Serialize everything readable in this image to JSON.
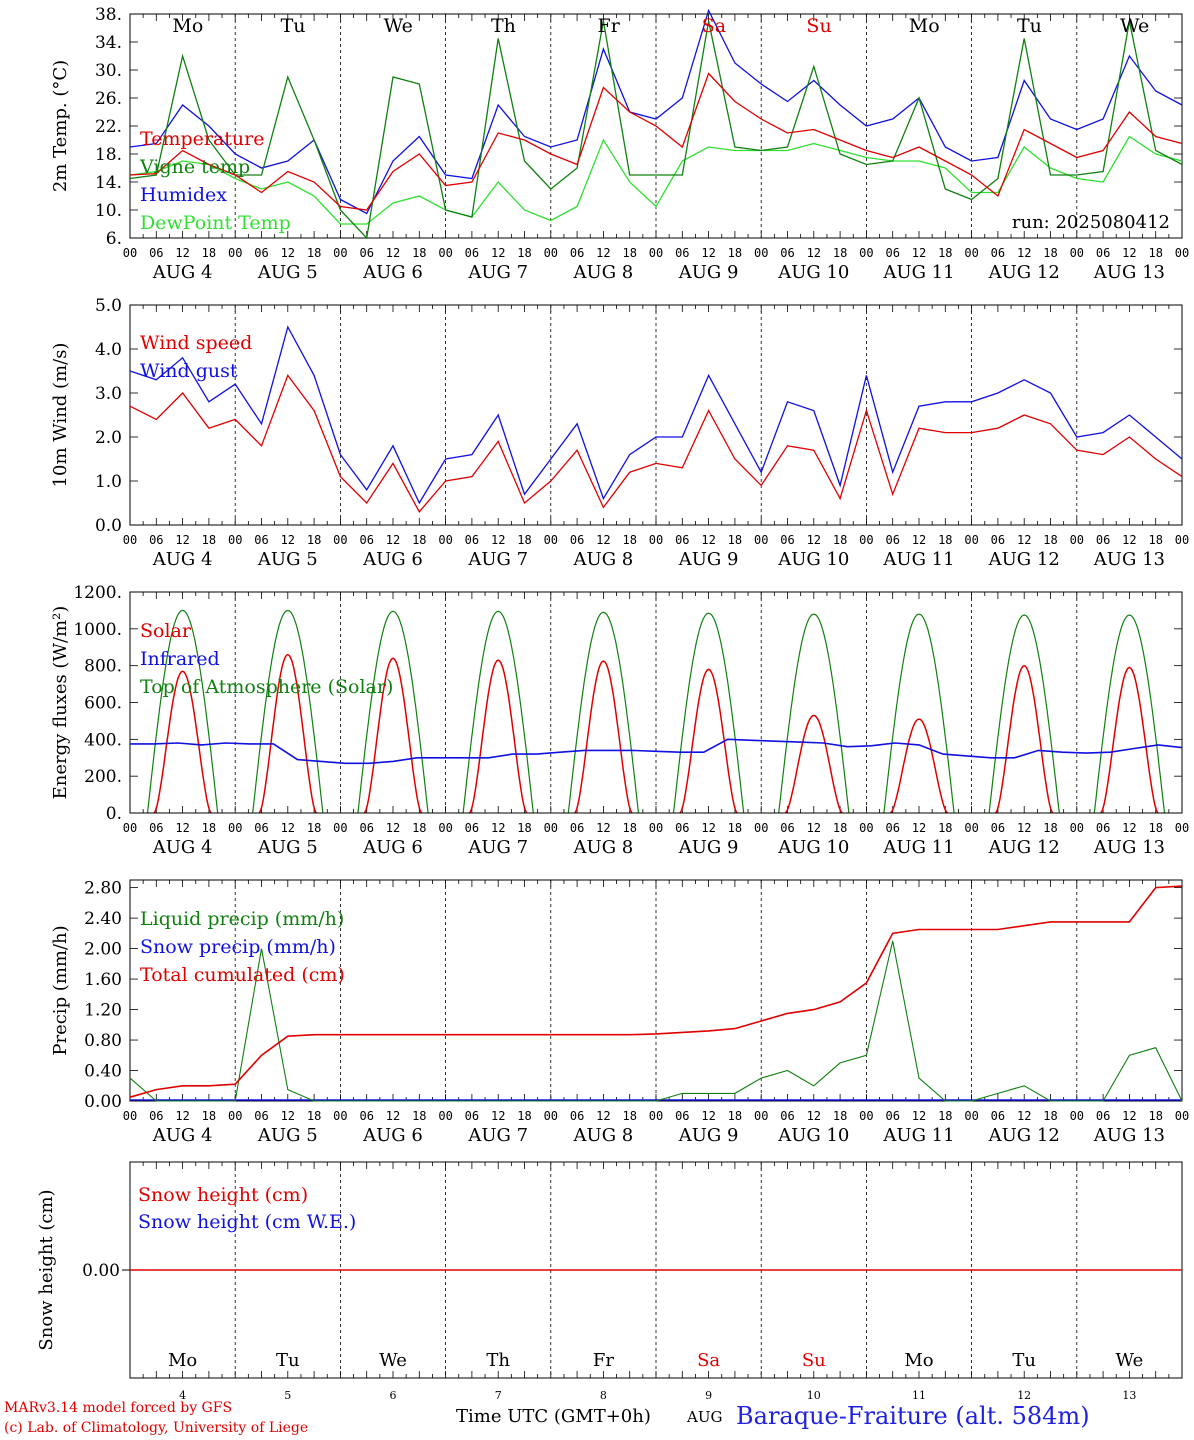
{
  "run_label": "run: 2025080412",
  "days": [
    "Mo",
    "Tu",
    "We",
    "Th",
    "Fr",
    "Sa",
    "Su",
    "Mo",
    "Tu",
    "We"
  ],
  "day_colors": [
    "#000000",
    "#000000",
    "#000000",
    "#000000",
    "#000000",
    "#e00000",
    "#e00000",
    "#000000",
    "#000000",
    "#000000"
  ],
  "date_labels": [
    "AUG  4",
    "AUG  5",
    "AUG  6",
    "AUG  7",
    "AUG  8",
    "AUG  9",
    "AUG 10",
    "AUG 11",
    "AUG 12",
    "AUG 13"
  ],
  "date_numbers": [
    "4",
    "5",
    "6",
    "7",
    "8",
    "9",
    "10",
    "11",
    "12",
    "13"
  ],
  "hour_ticks": [
    "00",
    "06",
    "12",
    "18"
  ],
  "hour_tick_end": "00",
  "footer": {
    "model_line": "MARv3.14 model forced by GFS",
    "credit_line": "(c) Lab. of Climatology, University of Liege",
    "time_axis": "Time UTC (GMT+0h)",
    "month": "AUG",
    "station": "Baraque-Fraiture (alt. 584m)"
  },
  "chart_data": [
    {
      "type": "line",
      "ylabel": "2m Temp. (°C)",
      "ylim": [
        6,
        38
      ],
      "yticks": [
        "38.",
        "34.",
        "30.",
        "26.",
        "22.",
        "18.",
        "14.",
        "10.",
        "6."
      ],
      "ytick_values": [
        38,
        34,
        30,
        26,
        22,
        18,
        14,
        10,
        6
      ],
      "x_start": "2025-08-04 00:00",
      "x_end": "2025-08-14 00:00",
      "x_step_hours": 6,
      "series": [
        {
          "name": "Temperature",
          "color": "#e00000",
          "values": [
            15,
            15.2,
            18.5,
            16.5,
            15,
            12.5,
            15.5,
            14,
            10.5,
            10,
            15.5,
            18,
            13.5,
            14,
            21,
            20,
            18,
            16.5,
            27.5,
            24,
            22,
            19,
            29.5,
            25.5,
            23,
            21,
            21.5,
            20,
            18.5,
            17.5,
            19,
            17,
            15,
            12,
            21.5,
            19.5,
            17.5,
            18.5,
            24,
            20.5,
            19.5
          ]
        },
        {
          "name": "Vigne temp",
          "color": "#108010",
          "values": [
            14.5,
            15,
            32,
            20,
            15,
            15,
            29,
            20,
            10,
            6,
            29,
            28,
            10,
            9,
            34.5,
            17,
            13,
            16,
            37,
            15,
            15,
            15,
            37,
            19,
            18.5,
            19,
            30.5,
            18,
            16.5,
            17,
            26,
            13,
            11.5,
            14.5,
            34.5,
            15,
            15,
            15.5,
            37,
            18.5,
            16.5
          ]
        },
        {
          "name": "Humidex",
          "color": "#1010e0",
          "values": [
            19,
            19.5,
            25,
            22,
            18,
            16,
            17,
            20,
            11.5,
            9.5,
            17,
            20.5,
            15,
            14.5,
            25,
            20.5,
            19,
            20,
            33,
            24,
            23,
            26,
            38.5,
            31,
            28,
            25.5,
            28.5,
            25,
            22,
            23,
            26,
            19,
            17,
            17.5,
            28.5,
            23,
            21.5,
            23,
            32,
            27,
            25
          ]
        },
        {
          "name": "DewPoint Temp",
          "color": "#30e030",
          "values": [
            15,
            15.5,
            17,
            16.5,
            14.5,
            13,
            14,
            12,
            8,
            8,
            11,
            12,
            10,
            9,
            14,
            10,
            8.5,
            10.5,
            20,
            14,
            10.5,
            17,
            19,
            18.5,
            18.5,
            18.5,
            19.5,
            18.5,
            17.5,
            17,
            17,
            16,
            12.5,
            12.5,
            19,
            16,
            14.5,
            14,
            20.5,
            18,
            17
          ]
        }
      ],
      "legend": [
        "Temperature",
        "Vigne temp",
        "Humidex",
        "DewPoint Temp"
      ],
      "legend_placement": "left"
    },
    {
      "type": "line",
      "ylabel": "10m Wind (m/s)",
      "ylim": [
        0,
        5
      ],
      "yticks": [
        "5.0",
        "4.0",
        "3.0",
        "2.0",
        "1.0",
        "0.0"
      ],
      "ytick_values": [
        5,
        4,
        3,
        2,
        1,
        0
      ],
      "series": [
        {
          "name": "Wind speed",
          "color": "#e00000",
          "values": [
            2.7,
            2.4,
            3,
            2.2,
            2.4,
            1.8,
            3.4,
            2.6,
            1.1,
            0.5,
            1.4,
            0.3,
            1,
            1.1,
            1.9,
            0.5,
            1,
            1.7,
            0.4,
            1.2,
            1.4,
            1.3,
            2.6,
            1.5,
            0.9,
            1.8,
            1.7,
            0.6,
            2.6,
            0.7,
            2.2,
            2.1,
            2.1,
            2.2,
            2.5,
            2.3,
            1.7,
            1.6,
            2,
            1.5,
            1.1
          ]
        },
        {
          "name": "Wind gust",
          "color": "#1010e0",
          "values": [
            3.5,
            3.3,
            3.8,
            2.8,
            3.2,
            2.3,
            4.5,
            3.4,
            1.6,
            0.8,
            1.8,
            0.5,
            1.5,
            1.6,
            2.5,
            0.7,
            1.5,
            2.3,
            0.6,
            1.6,
            2,
            2,
            3.4,
            2.3,
            1.2,
            2.8,
            2.6,
            0.9,
            3.4,
            1.2,
            2.7,
            2.8,
            2.8,
            3,
            3.3,
            3,
            2,
            2.1,
            2.5,
            2,
            1.5
          ]
        }
      ],
      "legend": [
        "Wind speed",
        "Wind gust"
      ],
      "legend_placement": "top-left"
    },
    {
      "type": "line",
      "ylabel": "Energy fluxes (W/m²)",
      "ylim": [
        0,
        1200
      ],
      "yticks": [
        "1200.",
        "1000.",
        "800.",
        "600.",
        "400.",
        "200.",
        "0."
      ],
      "ytick_values": [
        1200,
        1000,
        800,
        600,
        400,
        200,
        0
      ],
      "solar_peaks": [
        770,
        860,
        840,
        830,
        825,
        780,
        530,
        510,
        800,
        790
      ],
      "toa_peaks": [
        1100,
        1100,
        1095,
        1095,
        1090,
        1085,
        1080,
        1080,
        1075,
        1075
      ],
      "infrared_values": [
        375,
        375,
        380,
        370,
        380,
        375,
        375,
        290,
        280,
        270,
        270,
        280,
        300,
        300,
        300,
        300,
        320,
        320,
        330,
        340,
        340,
        340,
        335,
        330,
        330,
        400,
        395,
        390,
        385,
        380,
        360,
        365,
        380,
        370,
        320,
        310,
        300,
        300,
        340,
        330,
        325,
        330,
        350,
        370,
        355
      ],
      "series": [
        {
          "name": "Solar",
          "color": "#e00000"
        },
        {
          "name": "Infrared",
          "color": "#1010e0"
        },
        {
          "name": "Top of Atmosphere (Solar)",
          "color": "#108010"
        }
      ],
      "legend": [
        "Solar",
        "Infrared",
        "Top of Atmosphere (Solar)"
      ],
      "legend_placement": "top-left"
    },
    {
      "type": "line",
      "ylabel": "Precip (mm/h)",
      "ylim": [
        0,
        2.9
      ],
      "yticks": [
        "2.80",
        "2.40",
        "2.00",
        "1.60",
        "1.20",
        "0.80",
        "0.40",
        "0.00"
      ],
      "ytick_values": [
        2.8,
        2.4,
        2.0,
        1.6,
        1.2,
        0.8,
        0.4,
        0.0
      ],
      "series": [
        {
          "name": "Liquid precip (mm/h)",
          "color": "#108010",
          "values": [
            0.3,
            0,
            0,
            0,
            0,
            2,
            0.15,
            0,
            0,
            0,
            0,
            0,
            0,
            0,
            0,
            0,
            0,
            0,
            0,
            0,
            0,
            0.1,
            0.1,
            0.1,
            0.3,
            0.4,
            0.2,
            0.5,
            0.6,
            2.1,
            0.3,
            0,
            0,
            0.1,
            0.2,
            0,
            0,
            0,
            0.6,
            0.7,
            0
          ]
        },
        {
          "name": "Snow precip (mm/h)",
          "color": "#1010e0",
          "values": []
        },
        {
          "name": "Total cumulated (cm)",
          "color": "#e00000",
          "values": [
            0.05,
            0.15,
            0.2,
            0.2,
            0.22,
            0.6,
            0.85,
            0.87,
            0.87,
            0.87,
            0.87,
            0.87,
            0.87,
            0.87,
            0.87,
            0.87,
            0.87,
            0.87,
            0.87,
            0.87,
            0.88,
            0.9,
            0.92,
            0.95,
            1.05,
            1.15,
            1.2,
            1.3,
            1.55,
            2.2,
            2.25,
            2.25,
            2.25,
            2.25,
            2.3,
            2.35,
            2.35,
            2.35,
            2.35,
            2.8,
            2.82
          ]
        }
      ],
      "legend": [
        "Liquid precip (mm/h)",
        "Snow precip (mm/h)",
        "Total cumulated (cm)"
      ],
      "legend_placement": "top-left"
    },
    {
      "type": "line",
      "ylabel": "Snow height (cm)",
      "yticks": [
        "0.00"
      ],
      "ytick_values": [
        0
      ],
      "series": [
        {
          "name": "Snow height (cm)",
          "color": "#e00000",
          "values": [
            0,
            0
          ]
        },
        {
          "name": "Snow height (cm W.E.)",
          "color": "#1010e0",
          "values": []
        }
      ],
      "legend": [
        "Snow height (cm)",
        "Snow height (cm W.E.)"
      ],
      "legend_placement": "top-left"
    }
  ]
}
